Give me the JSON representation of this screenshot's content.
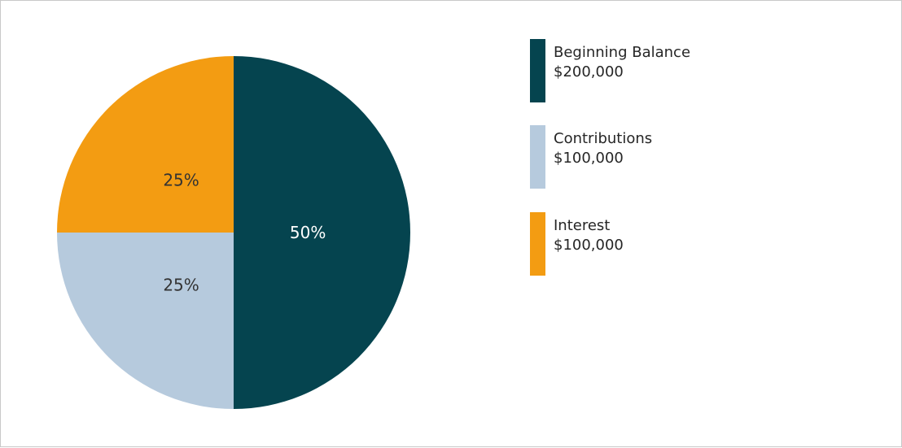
{
  "chart_data": {
    "type": "pie",
    "slices": [
      {
        "name": "Beginning Balance",
        "value_label": "$200,000",
        "value": 200000,
        "percent_label": "50%",
        "percent": 50,
        "color": "#05444f",
        "label_color": "#ffffff"
      },
      {
        "name": "Contributions",
        "value_label": "$100,000",
        "value": 100000,
        "percent_label": "25%",
        "percent": 25,
        "color": "#b6cadd",
        "label_color": "#333333"
      },
      {
        "name": "Interest",
        "value_label": "$100,000",
        "value": 100000,
        "percent_label": "25%",
        "percent": 25,
        "color": "#f39c12",
        "label_color": "#333333"
      }
    ],
    "legend_position": "right"
  }
}
